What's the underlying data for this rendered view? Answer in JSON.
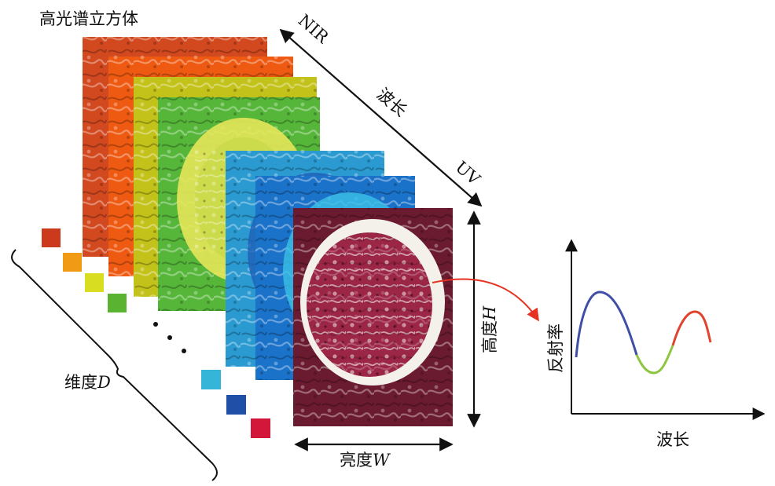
{
  "title": "高光谱立方体",
  "axis_wavelength": {
    "label": "波长",
    "end_top": "NIR",
    "end_bottom": "UV"
  },
  "dimension_label": {
    "prefix": "维度",
    "var": "D"
  },
  "height_label": {
    "prefix": "高度",
    "var": "H"
  },
  "width_label": {
    "prefix": "亮度",
    "var": "W"
  },
  "plot": {
    "ylabel": "反射率",
    "xlabel": "波长"
  },
  "ellipsis": "···",
  "colors": {
    "layers": [
      "#d2481f",
      "#ee5a12",
      "#c3c21a",
      "#56b63a",
      "#2a9ad1",
      "#1b72c9",
      "#a01c3c"
    ],
    "swatches": [
      "#cc3a1e",
      "#f09a16",
      "#d9dd22",
      "#5bb431",
      "#35b6d8",
      "#1f4fa6",
      "#d2173a"
    ],
    "curve_blue": "#3f4fa8",
    "curve_green": "#8cc63f",
    "curve_red": "#e0442f",
    "arrow_red": "#e53222"
  }
}
